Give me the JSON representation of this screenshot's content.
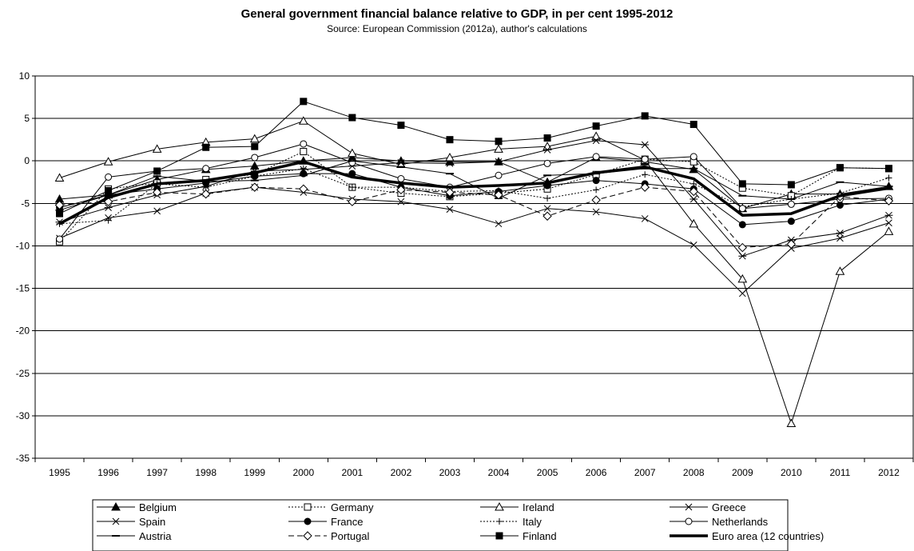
{
  "chart_data": {
    "type": "line",
    "title": "General government financial balance relative to GDP, in per cent 1995-2012",
    "subtitle": "Source: European Commission (2012a), author's calculations",
    "xlabel": "",
    "ylabel": "",
    "ylim": [
      -35,
      10
    ],
    "yticks": [
      10,
      5,
      0,
      -5,
      -10,
      -15,
      -20,
      -25,
      -30,
      -35
    ],
    "grid": "horizontal",
    "legend_position": "bottom",
    "categories": [
      "1995",
      "1996",
      "1997",
      "1998",
      "1999",
      "2000",
      "2001",
      "2002",
      "2003",
      "2004",
      "2005",
      "2006",
      "2007",
      "2008",
      "2009",
      "2010",
      "2011",
      "2012"
    ],
    "series": [
      {
        "name": "Belgium",
        "marker": "triangle-filled",
        "dash": "solid",
        "width": 1,
        "values": [
          -4.5,
          -4.0,
          -2.2,
          -1.0,
          -0.6,
          0.0,
          0.4,
          0.0,
          -0.1,
          -0.1,
          -2.5,
          0.4,
          -0.1,
          -1.0,
          -5.6,
          -3.9,
          -3.9,
          -3.0
        ]
      },
      {
        "name": "Germany",
        "marker": "square-open",
        "dash": "dotted",
        "width": 1,
        "values": [
          -9.5,
          -3.3,
          -2.6,
          -2.2,
          -1.6,
          1.1,
          -3.1,
          -3.8,
          -4.2,
          -3.8,
          -3.3,
          -1.6,
          0.2,
          -0.1,
          -3.2,
          -4.1,
          -0.8,
          -0.9
        ]
      },
      {
        "name": "Ireland",
        "marker": "triangle-open",
        "dash": "solid",
        "width": 1,
        "values": [
          -2.0,
          -0.1,
          1.4,
          2.2,
          2.6,
          4.7,
          0.9,
          -0.4,
          0.4,
          1.4,
          1.7,
          2.9,
          0.1,
          -7.4,
          -13.9,
          -30.9,
          -13.0,
          -8.3
        ]
      },
      {
        "name": "Greece",
        "marker": "x",
        "dash": "solid",
        "width": 1,
        "values": [
          -9.1,
          -6.7,
          -5.9,
          -3.8,
          -3.1,
          -3.7,
          -4.5,
          -4.8,
          -5.7,
          -7.4,
          -5.6,
          -6.0,
          -6.8,
          -9.9,
          -15.6,
          -10.3,
          -9.1,
          -7.3
        ]
      },
      {
        "name": "Spain",
        "marker": "asterisk",
        "dash": "solid",
        "width": 1,
        "values": [
          -7.2,
          -5.5,
          -4.0,
          -3.0,
          -1.2,
          -1.0,
          -0.6,
          -0.2,
          -0.3,
          -0.1,
          1.3,
          2.4,
          1.9,
          -4.5,
          -11.2,
          -9.3,
          -8.5,
          -6.4
        ]
      },
      {
        "name": "France",
        "marker": "circle-filled",
        "dash": "solid",
        "width": 1,
        "values": [
          -5.5,
          -4.0,
          -3.3,
          -2.6,
          -1.8,
          -1.5,
          -1.5,
          -3.1,
          -4.1,
          -3.6,
          -2.9,
          -2.3,
          -2.7,
          -3.3,
          -7.5,
          -7.1,
          -5.2,
          -4.5
        ]
      },
      {
        "name": "Italy",
        "marker": "plus",
        "dash": "dotted",
        "width": 1,
        "values": [
          -7.4,
          -7.0,
          -2.7,
          -3.1,
          -1.8,
          -0.9,
          -3.1,
          -3.1,
          -3.6,
          -3.5,
          -4.4,
          -3.4,
          -1.6,
          -2.7,
          -5.4,
          -4.5,
          -3.8,
          -2.0
        ]
      },
      {
        "name": "Netherlands",
        "marker": "circle-open",
        "dash": "solid",
        "width": 1,
        "values": [
          -9.2,
          -1.9,
          -1.2,
          -0.9,
          0.4,
          2.0,
          -0.2,
          -2.1,
          -3.1,
          -1.7,
          -0.3,
          0.5,
          0.2,
          0.5,
          -5.6,
          -5.1,
          -4.5,
          -4.4
        ]
      },
      {
        "name": "Austria",
        "marker": "dash",
        "dash": "solid",
        "width": 1,
        "values": [
          -5.8,
          -4.0,
          -1.8,
          -2.4,
          -2.3,
          -1.7,
          0.0,
          -0.7,
          -1.5,
          -4.4,
          -1.7,
          -1.5,
          -0.9,
          -0.9,
          -4.1,
          -4.5,
          -2.5,
          -3.0
        ]
      },
      {
        "name": "Portugal",
        "marker": "diamond-open",
        "dash": "dashed",
        "width": 1,
        "values": [
          -5.2,
          -4.8,
          -3.7,
          -3.9,
          -3.1,
          -3.3,
          -4.8,
          -3.4,
          -3.7,
          -4.0,
          -6.5,
          -4.6,
          -3.1,
          -3.6,
          -10.2,
          -9.8,
          -4.2,
          -4.7
        ]
      },
      {
        "name": "Finland",
        "marker": "square-filled",
        "dash": "solid",
        "width": 1,
        "values": [
          -6.2,
          -3.5,
          -1.2,
          1.6,
          1.7,
          7.0,
          5.1,
          4.2,
          2.5,
          2.3,
          2.7,
          4.1,
          5.3,
          4.3,
          -2.7,
          -2.8,
          -0.8,
          -0.9
        ]
      },
      {
        "name": "Euro area (12 countries)",
        "marker": "none",
        "dash": "solid",
        "width": 3.5,
        "values": [
          -7.4,
          -4.3,
          -2.7,
          -2.3,
          -1.4,
          -0.1,
          -1.9,
          -2.6,
          -3.1,
          -2.9,
          -2.6,
          -1.4,
          -0.7,
          -2.1,
          -6.4,
          -6.2,
          -4.1,
          -3.2
        ]
      }
    ]
  }
}
